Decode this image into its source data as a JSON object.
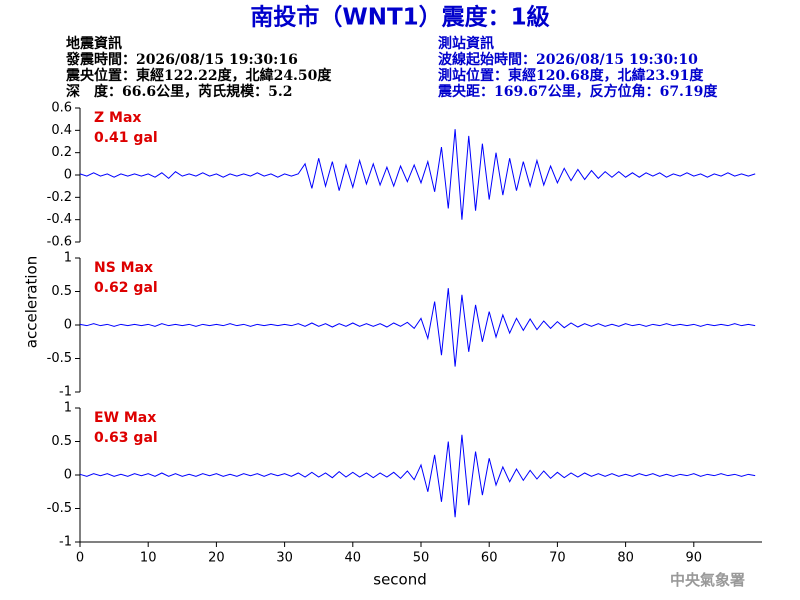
{
  "title": "南投市（WNT1）震度：1級",
  "header": {
    "left": [
      "地震資訊",
      "發震時間：2026/08/15 19:30:16",
      "震央位置：東經122.22度，北緯24.50度",
      "深　度：66.6公里，芮氏規模：5.2"
    ],
    "right": [
      "測站資訊",
      "波線起始時間：2026/08/15 19:30:10",
      "測站位置：東經120.68度，北緯23.91度",
      "震央距：169.67公里，反方位角：67.19度"
    ]
  },
  "y_label": "acceleration",
  "x_label": "second",
  "footer": "中央氣象署",
  "chart_data": [
    {
      "type": "line",
      "annotations": [
        "Z Max",
        "0.41 gal"
      ],
      "color": "#0000ff",
      "xlim": [
        0,
        100
      ],
      "ylim": [
        -0.6,
        0.6
      ],
      "yticks": [
        0.6,
        0.4,
        0.2,
        0,
        -0.2,
        -0.4,
        -0.6
      ],
      "x": [
        0,
        1,
        2,
        3,
        4,
        5,
        6,
        7,
        8,
        9,
        10,
        11,
        12,
        13,
        14,
        15,
        16,
        17,
        18,
        19,
        20,
        21,
        22,
        23,
        24,
        25,
        26,
        27,
        28,
        29,
        30,
        31,
        32,
        33,
        34,
        35,
        36,
        37,
        38,
        39,
        40,
        41,
        42,
        43,
        44,
        45,
        46,
        47,
        48,
        49,
        50,
        51,
        52,
        53,
        54,
        55,
        56,
        57,
        58,
        59,
        60,
        61,
        62,
        63,
        64,
        65,
        66,
        67,
        68,
        69,
        70,
        71,
        72,
        73,
        74,
        75,
        76,
        77,
        78,
        79,
        80,
        81,
        82,
        83,
        84,
        85,
        86,
        87,
        88,
        89,
        90,
        91,
        92,
        93,
        94,
        95,
        96,
        97,
        98,
        99
      ],
      "values": [
        0.01,
        -0.01,
        0.02,
        -0.01,
        0.01,
        -0.02,
        0.01,
        -0.01,
        0.01,
        -0.01,
        0.01,
        -0.02,
        0.02,
        -0.03,
        0.03,
        -0.01,
        0.01,
        -0.01,
        0.02,
        -0.01,
        0.01,
        -0.02,
        0.01,
        -0.01,
        0.01,
        -0.01,
        0.02,
        -0.01,
        0.01,
        -0.02,
        0.01,
        -0.01,
        0.01,
        0.1,
        -0.12,
        0.15,
        -0.1,
        0.12,
        -0.14,
        0.09,
        -0.11,
        0.13,
        -0.08,
        0.1,
        -0.09,
        0.07,
        -0.1,
        0.08,
        -0.06,
        0.09,
        -0.07,
        0.12,
        -0.15,
        0.25,
        -0.3,
        0.41,
        -0.4,
        0.35,
        -0.32,
        0.28,
        -0.22,
        0.2,
        -0.18,
        0.15,
        -0.14,
        0.12,
        -0.1,
        0.13,
        -0.09,
        0.08,
        -0.07,
        0.06,
        -0.05,
        0.05,
        -0.04,
        0.04,
        -0.03,
        0.03,
        -0.02,
        0.03,
        -0.02,
        0.02,
        -0.02,
        0.02,
        -0.01,
        0.02,
        -0.02,
        0.01,
        -0.01,
        0.02,
        -0.01,
        0.01,
        -0.02,
        0.01,
        -0.01,
        0.02,
        -0.01,
        0.01,
        -0.01,
        0.01
      ]
    },
    {
      "type": "line",
      "annotations": [
        "NS Max",
        "0.62 gal"
      ],
      "color": "#0000ff",
      "xlim": [
        0,
        100
      ],
      "ylim": [
        -1,
        1
      ],
      "yticks": [
        1,
        0.5,
        0,
        -0.5,
        -1
      ],
      "x": [
        0,
        1,
        2,
        3,
        4,
        5,
        6,
        7,
        8,
        9,
        10,
        11,
        12,
        13,
        14,
        15,
        16,
        17,
        18,
        19,
        20,
        21,
        22,
        23,
        24,
        25,
        26,
        27,
        28,
        29,
        30,
        31,
        32,
        33,
        34,
        35,
        36,
        37,
        38,
        39,
        40,
        41,
        42,
        43,
        44,
        45,
        46,
        47,
        48,
        49,
        50,
        51,
        52,
        53,
        54,
        55,
        56,
        57,
        58,
        59,
        60,
        61,
        62,
        63,
        64,
        65,
        66,
        67,
        68,
        69,
        70,
        71,
        72,
        73,
        74,
        75,
        76,
        77,
        78,
        79,
        80,
        81,
        82,
        83,
        84,
        85,
        86,
        87,
        88,
        89,
        90,
        91,
        92,
        93,
        94,
        95,
        96,
        97,
        98,
        99
      ],
      "values": [
        0.01,
        -0.01,
        0.02,
        -0.01,
        0.01,
        -0.02,
        0.01,
        -0.01,
        0.01,
        -0.01,
        0.01,
        -0.02,
        0.02,
        -0.01,
        0.01,
        -0.01,
        0.01,
        -0.02,
        0.01,
        -0.01,
        0.01,
        -0.01,
        0.02,
        -0.01,
        0.01,
        -0.02,
        0.01,
        -0.01,
        0.01,
        -0.01,
        0.01,
        -0.01,
        0.02,
        -0.02,
        0.03,
        -0.02,
        0.02,
        -0.03,
        0.02,
        -0.02,
        0.03,
        -0.02,
        0.02,
        -0.02,
        0.02,
        -0.03,
        0.03,
        -0.02,
        0.04,
        -0.05,
        0.1,
        -0.2,
        0.35,
        -0.45,
        0.55,
        -0.62,
        0.45,
        -0.4,
        0.3,
        -0.25,
        0.2,
        -0.18,
        0.15,
        -0.12,
        0.1,
        -0.08,
        0.09,
        -0.07,
        0.06,
        -0.05,
        0.05,
        -0.04,
        0.03,
        -0.03,
        0.02,
        -0.02,
        0.02,
        -0.02,
        0.01,
        -0.02,
        0.02,
        -0.01,
        0.01,
        -0.02,
        0.01,
        -0.01,
        0.02,
        -0.01,
        0.01,
        -0.01,
        0.01,
        -0.02,
        0.01,
        -0.01,
        0.01,
        -0.01,
        0.02,
        -0.01,
        0.01,
        -0.01
      ]
    },
    {
      "type": "line",
      "annotations": [
        "EW Max",
        "0.63 gal"
      ],
      "color": "#0000ff",
      "xlim": [
        0,
        100
      ],
      "ylim": [
        -1,
        1
      ],
      "yticks": [
        1,
        0.5,
        0,
        -0.5,
        -1
      ],
      "xticks": [
        0,
        10,
        20,
        30,
        40,
        50,
        60,
        70,
        80,
        90
      ],
      "x": [
        0,
        1,
        2,
        3,
        4,
        5,
        6,
        7,
        8,
        9,
        10,
        11,
        12,
        13,
        14,
        15,
        16,
        17,
        18,
        19,
        20,
        21,
        22,
        23,
        24,
        25,
        26,
        27,
        28,
        29,
        30,
        31,
        32,
        33,
        34,
        35,
        36,
        37,
        38,
        39,
        40,
        41,
        42,
        43,
        44,
        45,
        46,
        47,
        48,
        49,
        50,
        51,
        52,
        53,
        54,
        55,
        56,
        57,
        58,
        59,
        60,
        61,
        62,
        63,
        64,
        65,
        66,
        67,
        68,
        69,
        70,
        71,
        72,
        73,
        74,
        75,
        76,
        77,
        78,
        79,
        80,
        81,
        82,
        83,
        84,
        85,
        86,
        87,
        88,
        89,
        90,
        91,
        92,
        93,
        94,
        95,
        96,
        97,
        98,
        99
      ],
      "values": [
        0.01,
        -0.02,
        0.02,
        -0.01,
        0.02,
        -0.02,
        0.01,
        -0.02,
        0.02,
        -0.01,
        0.02,
        -0.02,
        0.03,
        -0.02,
        0.02,
        -0.02,
        0.01,
        -0.02,
        0.02,
        -0.01,
        0.02,
        -0.02,
        0.01,
        -0.02,
        0.02,
        -0.01,
        0.02,
        -0.02,
        0.02,
        -0.01,
        0.02,
        -0.02,
        0.03,
        -0.03,
        0.04,
        -0.03,
        0.03,
        -0.04,
        0.05,
        -0.03,
        0.04,
        -0.03,
        0.03,
        -0.04,
        0.03,
        -0.03,
        0.04,
        -0.05,
        0.06,
        -0.07,
        0.15,
        -0.25,
        0.3,
        -0.4,
        0.5,
        -0.63,
        0.6,
        -0.45,
        0.35,
        -0.3,
        0.25,
        -0.15,
        0.12,
        -0.1,
        0.09,
        -0.08,
        0.07,
        -0.06,
        0.06,
        -0.05,
        0.04,
        -0.04,
        0.03,
        -0.03,
        0.03,
        -0.02,
        0.02,
        -0.02,
        0.02,
        -0.02,
        0.01,
        -0.02,
        0.02,
        -0.01,
        0.02,
        -0.02,
        0.01,
        -0.02,
        0.01,
        -0.01,
        0.02,
        -0.02,
        0.01,
        -0.01,
        0.02,
        -0.01,
        0.01,
        -0.02,
        0.01,
        -0.01
      ]
    }
  ]
}
